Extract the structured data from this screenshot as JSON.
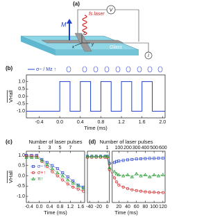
{
  "diagram": {
    "label": "(a)",
    "laser": "fs laser",
    "voltage": "V",
    "magnetization": "M",
    "substrate": "Glass",
    "current": "I",
    "axes": [
      "x",
      "y",
      "z"
    ]
  },
  "chart_data": [
    {
      "type": "line",
      "label": "(b)",
      "ylabel": "VHall",
      "xlabel": "Time (ms)",
      "legend": "top",
      "xlim": [
        -0.65,
        2.05
      ],
      "ylim": [
        -1.45,
        1.45
      ],
      "xticks": [
        -0.4,
        {
          "value": 0,
          "label": "0.0"
        },
        0.4,
        0.8,
        1.2,
        1.6,
        {
          "value": 2,
          "label": "2.0"
        }
      ],
      "yticks": [
        {
          "value": 1,
          "label": "1.0"
        },
        0.5,
        {
          "value": 0,
          "label": "0.0"
        },
        -0.5,
        {
          "value": -1,
          "label": "-1.0"
        }
      ],
      "series": [
        {
          "name": "σ− / Mz ↑",
          "color": "#1f3fd0",
          "x": [
            -0.65,
            0,
            0,
            0.2,
            0.2,
            0.4,
            0.4,
            0.6,
            0.6,
            0.8,
            0.8,
            1.0,
            1.0,
            1.2,
            1.2,
            1.4,
            1.4,
            1.6,
            1.6,
            1.8,
            1.8,
            2.05
          ],
          "values": [
            -1,
            -1,
            1,
            1,
            -1,
            -1,
            1,
            1,
            -1,
            -1,
            1,
            1,
            -1,
            -1,
            1,
            1,
            -1,
            -1,
            1,
            1,
            -1,
            -1
          ]
        }
      ]
    },
    {
      "type": "scatter",
      "label": "(c)",
      "ylabel": "VHall",
      "xlabel": "Time (ms)",
      "x2label": "Number of laser pulses",
      "legend": "left",
      "xlim": [
        -0.5,
        1.75
      ],
      "ylim": [
        -1.3,
        1.2
      ],
      "xticks": [
        -0.4,
        {
          "value": 0,
          "label": "0.0"
        },
        0.4,
        0.8,
        1.2,
        1.6
      ],
      "x2ticks": [
        {
          "value": 0,
          "label": "1"
        },
        {
          "value": 0.4,
          "label": "3"
        },
        {
          "value": 0.8,
          "label": "5"
        },
        {
          "value": 1.2,
          "label": "7"
        }
      ],
      "yticks": [
        {
          "value": 1,
          "label": "1.0"
        },
        0.5,
        {
          "value": 0,
          "label": "0.0"
        },
        -0.5,
        {
          "value": -1,
          "label": "-1.0"
        }
      ],
      "series": [
        {
          "name": "σ−↑",
          "color": "#1f3fd0",
          "marker": "square",
          "x": [
            -0.5,
            -0.3,
            -0.1,
            0.1,
            0.3,
            0.5,
            0.7,
            0.9,
            1.1,
            1.3,
            1.5,
            1.7
          ],
          "values": [
            1,
            1,
            1,
            0.8,
            0.65,
            0.5,
            0.35,
            0.15,
            -0.05,
            -0.25,
            -0.45,
            -0.55
          ]
        },
        {
          "name": "σ+↑",
          "color": "#d42020",
          "marker": "circle",
          "x": [
            -0.5,
            -0.3,
            -0.1,
            0.1,
            0.3,
            0.5,
            0.7,
            0.9,
            1.1,
            1.3,
            1.5,
            1.7
          ],
          "values": [
            0.95,
            0.95,
            0.95,
            0.7,
            0.45,
            0.2,
            0,
            -0.2,
            -0.4,
            -0.55,
            -0.65,
            -0.75
          ]
        },
        {
          "name": "π↑",
          "color": "#1f9a2a",
          "marker": "triangle",
          "x": [
            -0.5,
            -0.3,
            -0.1,
            0.1,
            0.3,
            0.5,
            0.7,
            0.9,
            1.1,
            1.3,
            1.5,
            1.7
          ],
          "values": [
            0.9,
            0.9,
            0.9,
            0.75,
            0.55,
            0.35,
            0.15,
            0,
            -0.2,
            -0.35,
            -0.5,
            -0.6
          ]
        }
      ]
    },
    {
      "type": "scatter",
      "label": "(d)",
      "xlabel": "Time (ms)",
      "x2label": "Number of laser pulses",
      "segments": [
        {
          "xlim": [
            -45,
            5
          ],
          "xticks": [
            -40,
            -20,
            0
          ]
        },
        {
          "xlim": [
            5,
            125
          ],
          "xticks": [
            20,
            40,
            60,
            80,
            100,
            120
          ]
        }
      ],
      "ylim": [
        -1.3,
        1.2
      ],
      "x2ticks": [
        {
          "value": 0,
          "label": "1"
        },
        {
          "value": 20,
          "label": "100"
        },
        {
          "value": 40,
          "label": "200"
        },
        {
          "value": 60,
          "label": "300"
        },
        {
          "value": 80,
          "label": "400"
        },
        {
          "value": 100,
          "label": "500"
        },
        {
          "value": 120,
          "label": "600"
        }
      ],
      "series": [
        {
          "color": "#1f3fd0",
          "marker": "square",
          "x": [
            -45,
            -35,
            -25,
            -15,
            -5,
            0,
            5,
            10,
            15,
            20,
            30,
            40,
            50,
            60,
            70,
            80,
            90,
            100,
            110,
            120
          ],
          "values": [
            0.95,
            0.95,
            0.95,
            0.95,
            0.95,
            0.95,
            0.6,
            0.65,
            0.7,
            0.72,
            0.75,
            0.78,
            0.8,
            0.82,
            0.83,
            0.84,
            0.85,
            0.85,
            0.86,
            0.86
          ]
        },
        {
          "color": "#d42020",
          "marker": "circle",
          "x": [
            -45,
            -35,
            -25,
            -15,
            -5,
            0,
            5,
            10,
            15,
            20,
            30,
            40,
            50,
            60,
            70,
            80,
            90,
            100,
            110,
            120
          ],
          "values": [
            0.9,
            0.9,
            0.9,
            0.9,
            0.9,
            0.9,
            0.3,
            -0.1,
            -0.3,
            -0.45,
            -0.55,
            -0.62,
            -0.68,
            -0.72,
            -0.75,
            -0.78,
            -0.8,
            -0.8,
            -0.82,
            -0.82
          ]
        },
        {
          "color": "#1f9a2a",
          "marker": "triangle",
          "x": [
            -45,
            -35,
            -25,
            -15,
            -5,
            0,
            5,
            10,
            15,
            20,
            30,
            40,
            50,
            60,
            70,
            80,
            90,
            100,
            110,
            120
          ],
          "values": [
            0.95,
            0.95,
            0.95,
            0.95,
            0.95,
            0.95,
            0.4,
            0.2,
            0.1,
            0.05,
            0,
            0.05,
            -0.05,
            0.1,
            0,
            0.05,
            -0.05,
            0.05,
            0,
            0.05
          ]
        }
      ]
    }
  ]
}
